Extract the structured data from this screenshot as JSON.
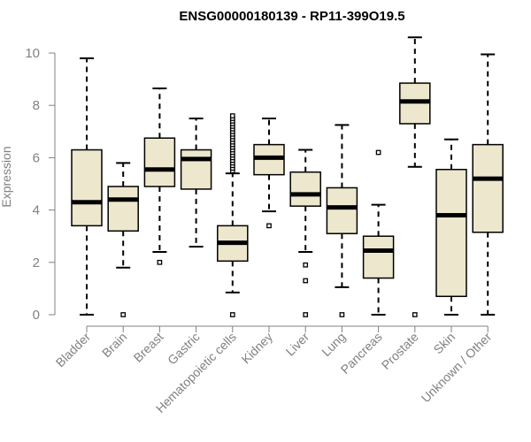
{
  "chart_data": {
    "type": "boxplot",
    "title": "ENSG00000180139 - RP11-399O19.5",
    "xlabel": "",
    "ylabel": "Expression",
    "ylim": [
      0,
      10.5
    ],
    "yticks": [
      0,
      2,
      4,
      6,
      8,
      10
    ],
    "grid": false,
    "legend": "none",
    "colors": {
      "box_fill": "#ede7cd",
      "line": "#000000",
      "axis": "#808080"
    },
    "categories": [
      "Bladder",
      "Brain",
      "Breast",
      "Gastric",
      "Hematopoietic cells",
      "Kidney",
      "Liver",
      "Lung",
      "Pancreas",
      "Prostate",
      "Skin",
      "Unknown / Other"
    ],
    "boxes": [
      {
        "name": "Bladder",
        "min": 0.0,
        "q1": 3.4,
        "median": 4.3,
        "q3": 6.3,
        "max": 9.8,
        "outliers": []
      },
      {
        "name": "Brain",
        "min": 1.8,
        "q1": 3.2,
        "median": 4.4,
        "q3": 4.9,
        "max": 5.8,
        "outliers": [
          0.0
        ]
      },
      {
        "name": "Breast",
        "min": 2.4,
        "q1": 4.9,
        "median": 5.55,
        "q3": 6.75,
        "max": 8.65,
        "outliers": [
          2.0
        ]
      },
      {
        "name": "Gastric",
        "min": 2.6,
        "q1": 4.8,
        "median": 5.95,
        "q3": 6.3,
        "max": 7.5,
        "outliers": []
      },
      {
        "name": "Hematopoietic cells",
        "min": 0.85,
        "q1": 2.05,
        "median": 2.75,
        "q3": 3.4,
        "max": 5.4,
        "outliers": [
          0.0,
          5.5,
          5.6,
          5.7,
          5.8,
          5.9,
          6.0,
          6.1,
          6.2,
          6.3,
          6.4,
          6.5,
          6.6,
          6.7,
          6.8,
          6.9,
          7.0,
          7.1,
          7.2,
          7.3,
          7.4,
          7.5,
          7.6
        ]
      },
      {
        "name": "Kidney",
        "min": 3.95,
        "q1": 5.35,
        "median": 6.0,
        "q3": 6.5,
        "max": 7.5,
        "outliers": [
          3.4
        ]
      },
      {
        "name": "Liver",
        "min": 2.4,
        "q1": 4.15,
        "median": 4.6,
        "q3": 5.45,
        "max": 6.3,
        "outliers": [
          1.9,
          1.3,
          0.0
        ]
      },
      {
        "name": "Lung",
        "min": 1.05,
        "q1": 3.1,
        "median": 4.1,
        "q3": 4.85,
        "max": 7.25,
        "outliers": [
          0.0
        ]
      },
      {
        "name": "Pancreas",
        "min": 0.0,
        "q1": 1.4,
        "median": 2.45,
        "q3": 3.0,
        "max": 4.2,
        "outliers": [
          6.2
        ]
      },
      {
        "name": "Prostate",
        "min": 5.65,
        "q1": 7.3,
        "median": 8.15,
        "q3": 8.85,
        "max": 10.6,
        "outliers": [
          0.0
        ]
      },
      {
        "name": "Skin",
        "min": 0.0,
        "q1": 0.7,
        "median": 3.8,
        "q3": 5.55,
        "max": 6.7,
        "outliers": []
      },
      {
        "name": "Unknown / Other",
        "min": 0.0,
        "q1": 3.15,
        "median": 5.2,
        "q3": 6.5,
        "max": 9.95,
        "outliers": []
      }
    ]
  }
}
